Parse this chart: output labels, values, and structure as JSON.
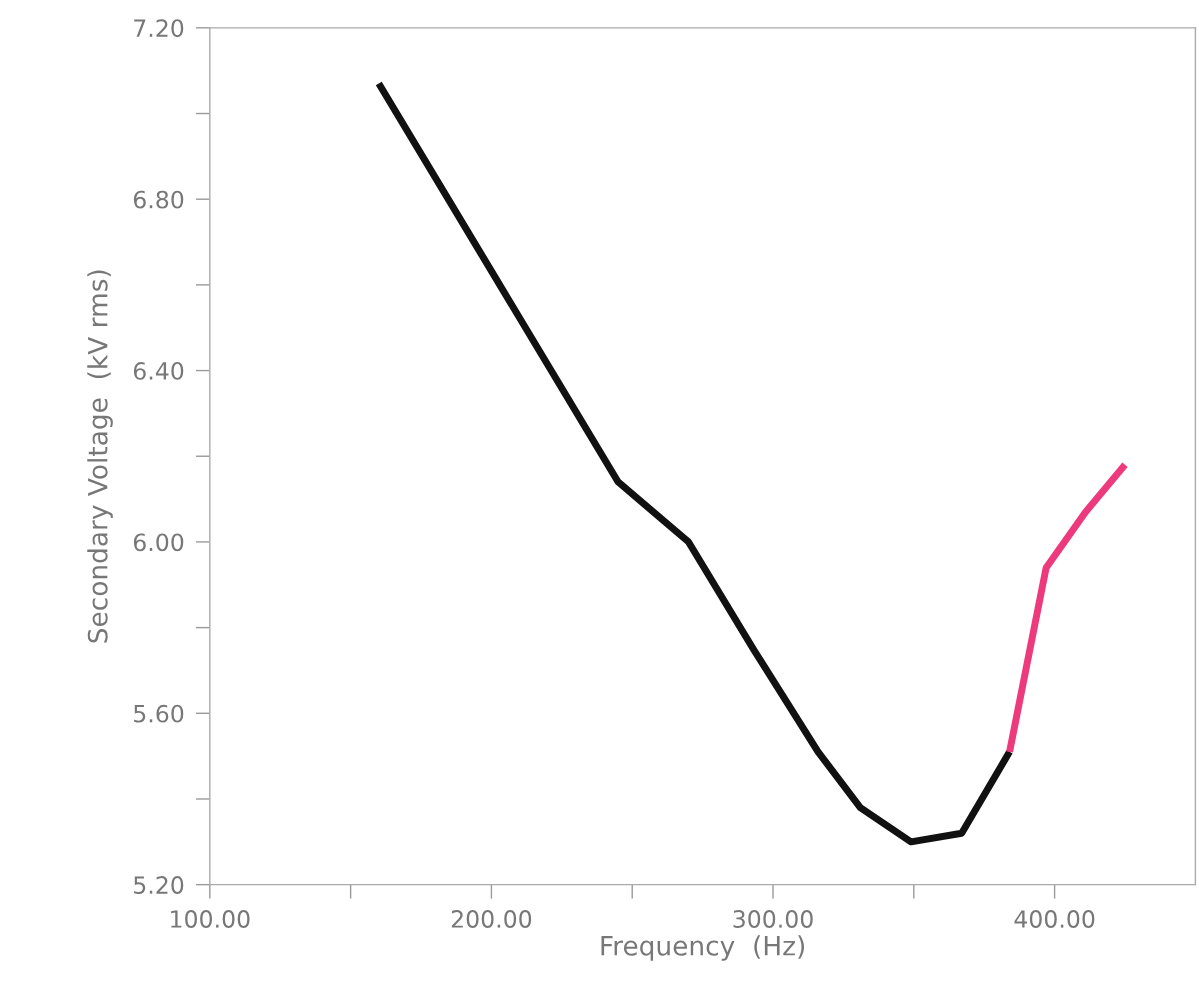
{
  "chart_data": {
    "type": "line",
    "xlabel": "Frequency  (Hz)",
    "ylabel": "Secondary Voltage  (kV rms)",
    "series": [
      {
        "color": "#111111",
        "x": [
          160,
          245,
          270,
          293,
          316,
          331,
          349,
          367,
          384
        ],
        "values": [
          7.07,
          6.14,
          6.0,
          5.75,
          5.51,
          5.38,
          5.3,
          5.32,
          5.51
        ]
      },
      {
        "color": "#ec3a7c",
        "x": [
          384,
          397,
          411,
          425
        ],
        "values": [
          5.51,
          5.94,
          6.07,
          6.18
        ]
      }
    ],
    "xlim": [
      100,
      450
    ],
    "xticks": [
      {
        "value": 100,
        "label": "100.00"
      },
      {
        "value": 150,
        "label": null
      },
      {
        "value": 200,
        "label": "200.00"
      },
      {
        "value": 250,
        "label": null
      },
      {
        "value": 300,
        "label": "300.00"
      },
      {
        "value": 350,
        "label": null
      },
      {
        "value": 400,
        "label": "400.00"
      }
    ],
    "ylim": [
      5.2,
      7.2
    ],
    "yticks": [
      {
        "value": 5.2,
        "label": "5.20"
      },
      {
        "value": 5.4,
        "label": null
      },
      {
        "value": 5.6,
        "label": "5.60"
      },
      {
        "value": 5.8,
        "label": null
      },
      {
        "value": 6.0,
        "label": "6.00"
      },
      {
        "value": 6.2,
        "label": null
      },
      {
        "value": 6.4,
        "label": "6.40"
      },
      {
        "value": 6.6,
        "label": null
      },
      {
        "value": 6.8,
        "label": "6.80"
      },
      {
        "value": 7.0,
        "label": null
      },
      {
        "value": 7.2,
        "label": "7.20"
      }
    ],
    "grid": false,
    "legend": false,
    "marker": "none",
    "line_style": "solid"
  }
}
